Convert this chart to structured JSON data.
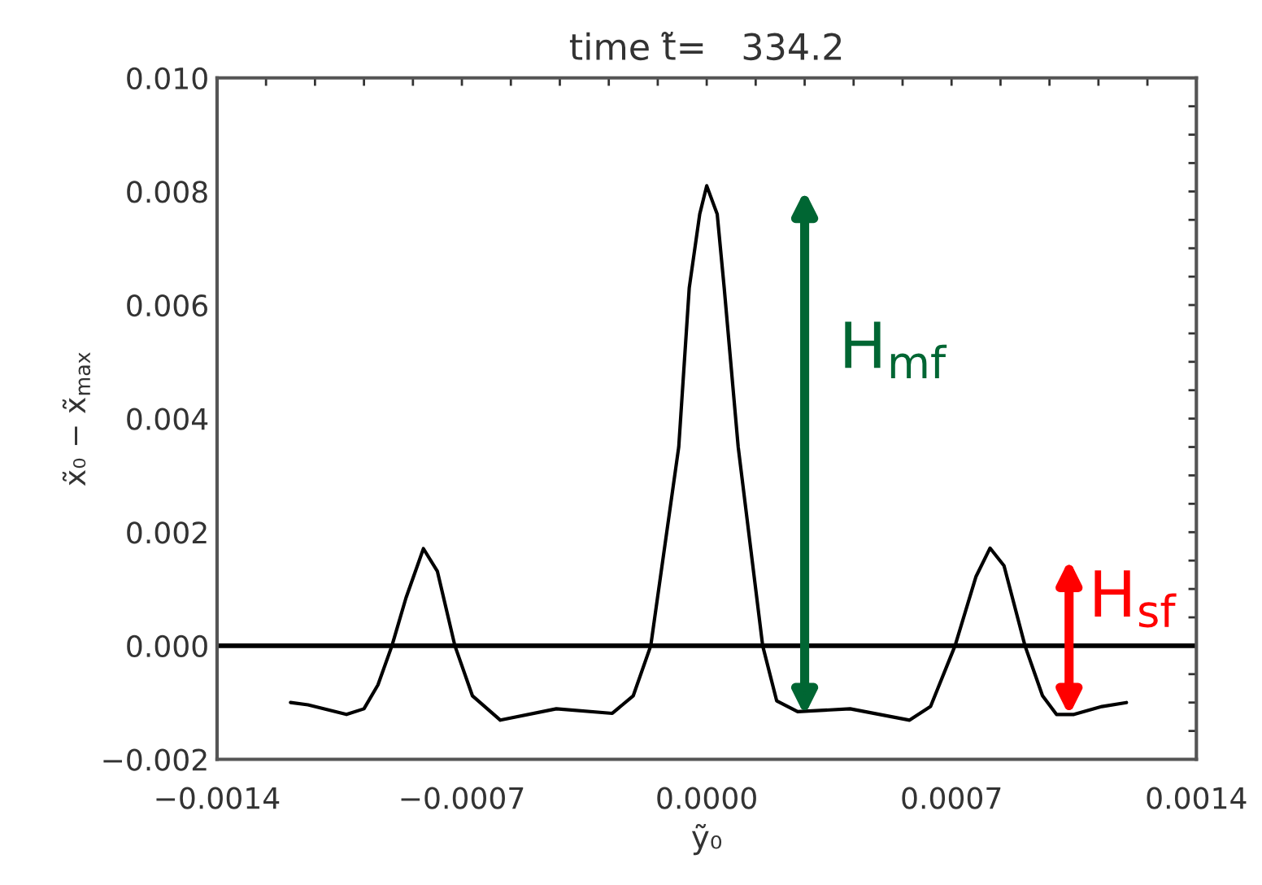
{
  "chart_data": {
    "type": "line",
    "title": "time t̃=   334.2",
    "xlabel": "ỹ₀",
    "ylabel": "x̃₀ − x̃$_{max}$",
    "x": [
      -0.00119,
      -0.00114,
      -0.00103,
      -0.00098,
      -0.00094,
      -0.0009,
      -0.00086,
      -0.00081,
      -0.00077,
      -0.00072,
      -0.00067,
      -0.00059,
      -0.00043,
      -0.00027,
      -0.00021,
      -0.00016,
      -8e-05,
      -5e-05,
      -2e-05,
      0.0,
      3e-05,
      5e-05,
      9e-05,
      0.00016,
      0.0002,
      0.00026,
      0.00041,
      0.00058,
      0.00064,
      0.00071,
      0.00077,
      0.00081,
      0.00085,
      0.00091,
      0.00096,
      0.001,
      0.00105,
      0.00113,
      0.0012
    ],
    "series": [
      {
        "color": "#000000",
        "values": [
          -0.001,
          -0.00104,
          -0.00121,
          -0.00111,
          -0.00069,
          0.0,
          0.00084,
          0.00171,
          0.00131,
          0.0,
          -0.00088,
          -0.00131,
          -0.00111,
          -0.00119,
          -0.00088,
          0.0,
          0.0035,
          0.0063,
          0.0076,
          0.0081,
          0.0076,
          0.0063,
          0.0035,
          0.0,
          -0.00097,
          -0.00116,
          -0.00111,
          -0.00131,
          -0.00107,
          0.0,
          0.00122,
          0.00172,
          0.00141,
          0.0,
          -0.00088,
          -0.00121,
          -0.00121,
          -0.00107,
          -0.001
        ]
      }
    ],
    "xlim": [
      -0.0014,
      0.0014
    ],
    "xticks": [
      {
        "value": -0.0014,
        "label": "−0.0014"
      },
      {
        "value": -0.00126,
        "label": null
      },
      {
        "value": -0.00112,
        "label": null
      },
      {
        "value": -0.00098,
        "label": null
      },
      {
        "value": -0.00084,
        "label": null
      },
      {
        "value": -0.0007,
        "label": "−0.0007"
      },
      {
        "value": -0.00056,
        "label": null
      },
      {
        "value": -0.00042,
        "label": null
      },
      {
        "value": -0.00028,
        "label": null
      },
      {
        "value": -0.00014,
        "label": null
      },
      {
        "value": 0.0,
        "label": "0.0000"
      },
      {
        "value": 0.00014,
        "label": null
      },
      {
        "value": 0.00028,
        "label": null
      },
      {
        "value": 0.00042,
        "label": null
      },
      {
        "value": 0.00056,
        "label": null
      },
      {
        "value": 0.0007,
        "label": "0.0007"
      },
      {
        "value": 0.00084,
        "label": null
      },
      {
        "value": 0.00098,
        "label": null
      },
      {
        "value": 0.00112,
        "label": null
      },
      {
        "value": 0.00126,
        "label": null
      },
      {
        "value": 0.0014,
        "label": "0.0014"
      }
    ],
    "ylim": [
      -0.002,
      0.01
    ],
    "yticks": [
      {
        "value": -0.002,
        "label": "−0.002"
      },
      {
        "value": -0.0015,
        "label": null
      },
      {
        "value": -0.001,
        "label": null
      },
      {
        "value": -0.0005,
        "label": null
      },
      {
        "value": 0.0,
        "label": "0.000"
      },
      {
        "value": 0.0005,
        "label": null
      },
      {
        "value": 0.001,
        "label": null
      },
      {
        "value": 0.0015,
        "label": null
      },
      {
        "value": 0.002,
        "label": "0.002"
      },
      {
        "value": 0.0025,
        "label": null
      },
      {
        "value": 0.003,
        "label": null
      },
      {
        "value": 0.0035,
        "label": null
      },
      {
        "value": 0.004,
        "label": "0.004"
      },
      {
        "value": 0.0045,
        "label": null
      },
      {
        "value": 0.005,
        "label": null
      },
      {
        "value": 0.0055,
        "label": null
      },
      {
        "value": 0.006,
        "label": "0.006"
      },
      {
        "value": 0.0065,
        "label": null
      },
      {
        "value": 0.007,
        "label": null
      },
      {
        "value": 0.0075,
        "label": null
      },
      {
        "value": 0.008,
        "label": "0.008"
      },
      {
        "value": 0.0085,
        "label": null
      },
      {
        "value": 0.009,
        "label": null
      },
      {
        "value": 0.0095,
        "label": null
      },
      {
        "value": 0.01,
        "label": "0.010"
      }
    ],
    "ref_lines": [
      {
        "axis": "y",
        "value": 0.0,
        "color": "#000000"
      }
    ],
    "annotations": [
      "H$_{mf}$",
      "H$_{sf}$"
    ],
    "grid": false,
    "legend": false,
    "marker": "none",
    "line_style": "solid"
  }
}
